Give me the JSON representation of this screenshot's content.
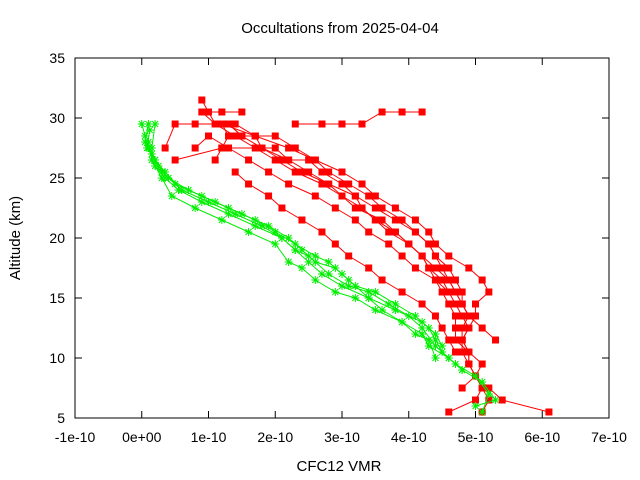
{
  "chart_data": {
    "type": "line",
    "title": "Occultations from 2025-04-04",
    "xlabel": "CFC12 VMR",
    "ylabel": "Altitude (km)",
    "xlim": [
      -1e-10,
      7e-10
    ],
    "ylim": [
      5,
      35
    ],
    "x_ticks": [
      -1e-10,
      0,
      1e-10,
      2e-10,
      3e-10,
      4e-10,
      5e-10,
      6e-10,
      7e-10
    ],
    "x_tick_labels": [
      "-1e-10",
      "0e+00",
      "1e-10",
      "2e-10",
      "3e-10",
      "4e-10",
      "5e-10",
      "6e-10",
      "7e-10"
    ],
    "y_ticks": [
      5,
      10,
      15,
      20,
      25,
      30,
      35
    ],
    "y_tick_labels": [
      "5",
      "10",
      "15",
      "20",
      "25",
      "30",
      "35"
    ],
    "grid": false,
    "legend": "none",
    "series_colors": {
      "red": "#ff0000",
      "green": "#00ee00"
    },
    "series": [
      {
        "color": "red",
        "marker": "square",
        "x": [
          4.6e-10,
          5e-10,
          5.1e-10,
          5e-10,
          4.9e-10,
          4.9e-10,
          4.8e-10,
          4.9e-10,
          4.8e-10,
          4.7e-10,
          4.6e-10,
          4.5e-10,
          4.3e-10,
          4.2e-10,
          4e-10,
          3.8e-10,
          3.5e-10,
          3.3e-10,
          3.2e-10,
          3e-10,
          2.7e-10,
          2.5e-10,
          2.2e-10,
          2e-10,
          1.8e-10,
          1.7e-10,
          1.5e-10,
          1.3e-10,
          1.1e-10,
          1e-10,
          9e-11
        ],
        "y": [
          5.5,
          6.5,
          7.5,
          8.5,
          9.5,
          10.5,
          11.5,
          12.5,
          13.5,
          14.5,
          15.5,
          16.5,
          17.5,
          18.5,
          19.5,
          20.5,
          21.5,
          22.5,
          23.5,
          24.5,
          25.5,
          26.5,
          26.5,
          27.5,
          27.5,
          28.5,
          28.5,
          29.5,
          29.5,
          30.5,
          31.5
        ]
      },
      {
        "color": "red",
        "marker": "square",
        "x": [
          6.1e-10,
          5.4e-10,
          5.2e-10,
          5e-10,
          4.9e-10,
          4.9e-10,
          4.8e-10,
          4.8e-10,
          4.9e-10,
          4.8e-10,
          4.8e-10,
          4.7e-10,
          4.6e-10,
          4.4e-10,
          4.3e-10,
          4.1e-10,
          3.9e-10,
          3.6e-10,
          3.4e-10,
          3.1e-10,
          2.8e-10,
          2.6e-10,
          2.3e-10,
          2e-10,
          1.7e-10,
          1.4e-10,
          1.2e-10,
          1.3e-10,
          1.2e-10,
          1.1e-10
        ],
        "y": [
          5.5,
          6.5,
          7.5,
          8.5,
          9.5,
          10.5,
          11.5,
          12.5,
          13.5,
          14.5,
          15.5,
          16.5,
          17.5,
          18.5,
          19.5,
          20.5,
          21.5,
          22.5,
          23.5,
          24.5,
          25.5,
          26.5,
          27.5,
          28.5,
          28.5,
          29.5,
          29.5,
          28.5,
          27.5,
          26.5
        ]
      },
      {
        "color": "red",
        "marker": "square",
        "x": [
          5.1e-10,
          5.2e-10,
          5.1e-10,
          5e-10,
          4.9e-10,
          4.8e-10,
          4.8e-10,
          4.9e-10,
          5e-10,
          5e-10,
          5.2e-10,
          5.1e-10,
          4.9e-10,
          4.6e-10,
          4.4e-10,
          4.3e-10,
          4.1e-10,
          3.8e-10,
          3.5e-10,
          3.3e-10,
          3e-10,
          2.6e-10,
          2.2e-10,
          1.7e-10,
          1.2e-10,
          8e-11,
          5e-11,
          3.5e-11
        ],
        "y": [
          5.5,
          6.5,
          7.5,
          8.5,
          9.5,
          10.5,
          11.5,
          12.5,
          13.5,
          14.5,
          15.5,
          16.5,
          17.5,
          18.5,
          19.5,
          20.5,
          21.5,
          22.5,
          23.5,
          24.5,
          25.5,
          26.5,
          27.5,
          28.5,
          29.5,
          29.5,
          29.5,
          27.5
        ]
      },
      {
        "color": "red",
        "marker": "square",
        "x": [
          4.8e-10,
          5e-10,
          5.1e-10,
          4.9e-10,
          4.7e-10,
          4.7e-10,
          4.7e-10,
          4.6e-10,
          4.5e-10,
          4.4e-10,
          4.3e-10,
          4.2e-10,
          4e-10,
          3.7e-10,
          3.5e-10,
          3.3e-10,
          3e-10,
          2.7e-10,
          2.3e-10,
          2e-10,
          1.7e-10,
          1.4e-10,
          1.1e-10,
          9e-11,
          1.2e-10,
          1.5e-10
        ],
        "y": [
          7.5,
          8.5,
          9.5,
          10.5,
          11.5,
          12.5,
          13.5,
          14.5,
          15.5,
          16.5,
          17.5,
          18.5,
          19.5,
          20.5,
          21.5,
          22.5,
          23.5,
          24.5,
          25.5,
          26.5,
          27.5,
          28.5,
          29.5,
          30.5,
          30.5,
          30.5
        ]
      },
      {
        "color": "red",
        "marker": "square",
        "x": [
          5.3e-10,
          5.1e-10,
          4.9e-10,
          4.8e-10,
          4.7e-10,
          4.6e-10,
          4.5e-10,
          4.4e-10,
          4.3e-10,
          4.1e-10,
          3.8e-10,
          3.5e-10,
          3.2e-10,
          2.8e-10,
          2.4e-10,
          2.1e-10,
          1.8e-10,
          1.5e-10,
          1.3e-10
        ],
        "y": [
          11.5,
          12.5,
          13.5,
          14.5,
          15.5,
          16.5,
          17.5,
          18.5,
          19.5,
          20.5,
          21.5,
          22.5,
          23.5,
          24.5,
          25.5,
          26.5,
          27.5,
          28.5,
          29.5
        ]
      },
      {
        "color": "red",
        "marker": "square",
        "x": [
          4.7e-10,
          4.6e-10,
          4.5e-10,
          4.4e-10,
          4.2e-10,
          3.9e-10,
          3.6e-10,
          3.4e-10,
          3.1e-10,
          2.9e-10,
          2.7e-10,
          2.4e-10,
          2.1e-10,
          1.9e-10,
          1.6e-10,
          1.4e-10
        ],
        "y": [
          10.5,
          11.5,
          12.5,
          13.5,
          14.5,
          15.5,
          16.5,
          17.5,
          18.5,
          19.5,
          20.5,
          21.5,
          22.5,
          23.5,
          24.5,
          25.5
        ]
      },
      {
        "color": "red",
        "marker": "square",
        "x": [
          4.9e-10,
          4.8e-10,
          4.7e-10,
          4.6e-10,
          4.4e-10,
          4.2e-10,
          4e-10,
          3.8e-10,
          3.6e-10,
          3.2e-10,
          3e-10,
          2.8e-10,
          2.5e-10,
          2.2e-10,
          1.8e-10,
          1.2e-10,
          5e-11
        ],
        "y": [
          13.5,
          14.5,
          15.5,
          16.5,
          17.5,
          18.5,
          19.5,
          20.5,
          21.5,
          22.5,
          23.5,
          24.5,
          25.5,
          26.5,
          27.5,
          27.5,
          26.5
        ]
      },
      {
        "color": "red",
        "marker": "square",
        "x": [
          4.6e-10,
          4.4e-10,
          4.1e-10,
          3.9e-10,
          3.7e-10,
          3.4e-10,
          3.2e-10,
          2.9e-10,
          2.6e-10,
          2.2e-10,
          1.9e-10,
          1.6e-10,
          1.3e-10,
          1e-10,
          8e-11
        ],
        "y": [
          15.5,
          16.5,
          17.5,
          18.5,
          19.5,
          20.5,
          21.5,
          22.5,
          23.5,
          24.5,
          25.5,
          26.5,
          27.5,
          28.5,
          27.5
        ]
      },
      {
        "color": "red",
        "marker": "square",
        "x": [
          4.2e-10,
          3.9e-10,
          3.6e-10,
          3.3e-10,
          3e-10,
          2.7e-10,
          2.3e-10
        ],
        "y": [
          30.5,
          30.5,
          30.5,
          29.5,
          29.5,
          29.5,
          29.5
        ]
      },
      {
        "color": "green",
        "marker": "star",
        "x": [
          5.1e-10,
          5.2e-10,
          5e-10,
          4.7e-10,
          4.5e-10,
          4.4e-10,
          4.3e-10,
          4.1e-10,
          3.8e-10,
          3.5e-10,
          3.2e-10,
          3e-10,
          2.8e-10,
          2.6e-10,
          2.3e-10,
          2e-10,
          1.7e-10,
          1.3e-10,
          9e-11,
          5e-11,
          3e-11,
          2e-11,
          1e-11,
          5e-12,
          0.0
        ],
        "y": [
          5.5,
          7.0,
          8.5,
          9.5,
          10.5,
          11.5,
          12.5,
          13.5,
          14.5,
          15.5,
          16.0,
          17.0,
          18.0,
          18.5,
          19.5,
          20.5,
          21.5,
          22.5,
          23.5,
          24.5,
          25.5,
          26.5,
          27.5,
          28.5,
          29.5
        ]
      },
      {
        "color": "green",
        "marker": "star",
        "x": [
          5e-10,
          5.3e-10,
          5.1e-10,
          4.8e-10,
          4.6e-10,
          4.3e-10,
          4.2e-10,
          3.9e-10,
          3.6e-10,
          3.4e-10,
          3.1e-10,
          2.9e-10,
          2.6e-10,
          2.4e-10,
          2.2e-10,
          1.9e-10,
          1.5e-10,
          1.1e-10,
          7e-11,
          4e-11,
          2.5e-11,
          1.5e-11,
          5e-12,
          1e-11
        ],
        "y": [
          6.0,
          6.5,
          8.0,
          9.0,
          10.0,
          11.0,
          12.0,
          13.0,
          14.0,
          15.0,
          16.5,
          17.5,
          18.0,
          19.0,
          20.0,
          21.0,
          22.0,
          23.0,
          24.0,
          25.0,
          26.0,
          27.0,
          28.0,
          29.5
        ]
      },
      {
        "color": "green",
        "marker": "star",
        "x": [
          4.8e-10,
          4.6e-10,
          4.4e-10,
          4.2e-10,
          4e-10,
          3.7e-10,
          3.4e-10,
          3.1e-10,
          2.8e-10,
          2.5e-10,
          2.3e-10,
          2.1e-10,
          1.8e-10,
          1.4e-10,
          1e-10,
          6e-11,
          3.5e-11,
          2e-11,
          8e-12,
          1.2e-11
        ],
        "y": [
          9.0,
          10.0,
          11.0,
          12.5,
          13.5,
          14.5,
          15.5,
          16.0,
          17.0,
          18.5,
          19.0,
          20.0,
          21.0,
          22.0,
          23.0,
          24.0,
          25.5,
          26.5,
          27.5,
          29.0
        ]
      },
      {
        "color": "green",
        "marker": "star",
        "x": [
          4.4e-10,
          4.3e-10,
          4.1e-10,
          3.9e-10,
          3.5e-10,
          3.2e-10,
          2.9e-10,
          2.6e-10,
          2.4e-10,
          2.2e-10,
          2e-10,
          1.6e-10,
          1.2e-10,
          8e-11,
          4.5e-11,
          3e-11,
          1.5e-11,
          1e-11
        ],
        "y": [
          10.0,
          11.5,
          12.0,
          13.0,
          14.0,
          15.0,
          15.5,
          16.5,
          17.5,
          18.0,
          19.5,
          20.5,
          21.5,
          22.5,
          23.5,
          25.0,
          26.5,
          28.0
        ]
      },
      {
        "color": "green",
        "marker": "star",
        "x": [
          4.5e-10,
          4.4e-10,
          4.2e-10,
          3.8e-10,
          3.4e-10,
          3e-10,
          2.7e-10,
          2.5e-10,
          2.3e-10,
          2.1e-10,
          1.7e-10,
          1.3e-10,
          9e-11,
          5.5e-11,
          3.5e-11,
          2e-11,
          1.5e-11,
          2e-11
        ],
        "y": [
          11.0,
          12.0,
          13.0,
          14.0,
          15.0,
          16.0,
          17.0,
          18.0,
          19.0,
          20.0,
          21.0,
          22.0,
          23.0,
          24.0,
          25.0,
          26.0,
          27.5,
          29.5
        ]
      }
    ]
  }
}
